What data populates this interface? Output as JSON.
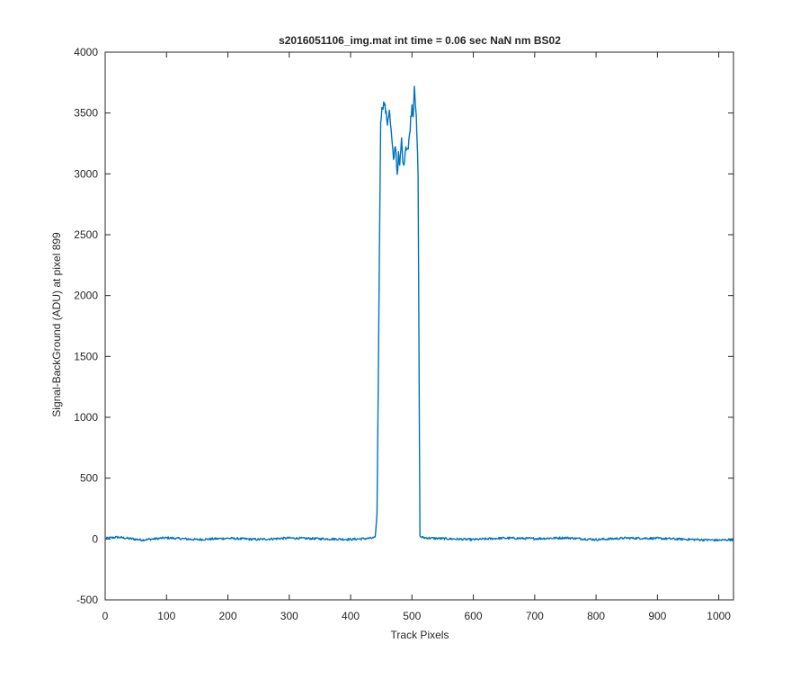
{
  "chart_data": {
    "type": "line",
    "title": "s2016051106_img.mat int time = 0.06 sec  NaN nm BS02",
    "xlabel": "Track Pixels",
    "ylabel": "Signal-BackGround (ADU) at pixel 899",
    "xlim": [
      0,
      1024
    ],
    "ylim": [
      -500,
      4000
    ],
    "xticks": [
      0,
      100,
      200,
      300,
      400,
      500,
      600,
      700,
      800,
      900,
      1000
    ],
    "yticks": [
      -500,
      0,
      500,
      1000,
      1500,
      2000,
      2500,
      3000,
      3500,
      4000
    ],
    "grid": false,
    "line_color": "#0072BD",
    "series": [
      {
        "x": [
          0,
          20,
          60,
          100,
          150,
          200,
          250,
          300,
          350,
          400,
          430,
          440,
          443,
          446,
          449,
          452,
          455,
          460,
          463,
          466,
          470,
          473,
          476,
          478,
          480,
          483,
          486,
          490,
          494,
          498,
          500,
          502,
          504,
          507,
          510,
          513,
          520,
          540,
          600,
          650,
          700,
          750,
          800,
          850,
          900,
          950,
          1000,
          1024
        ],
        "y": [
          5,
          15,
          -8,
          10,
          -5,
          6,
          -4,
          8,
          2,
          -3,
          5,
          10,
          200,
          1800,
          3450,
          3560,
          3580,
          3420,
          3530,
          3350,
          3100,
          3250,
          3000,
          3150,
          3050,
          3280,
          3050,
          3230,
          3200,
          3450,
          3560,
          3480,
          3750,
          3450,
          3000,
          20,
          10,
          5,
          -5,
          8,
          3,
          10,
          -5,
          8,
          5,
          -3,
          -10,
          -5
        ]
      }
    ]
  }
}
